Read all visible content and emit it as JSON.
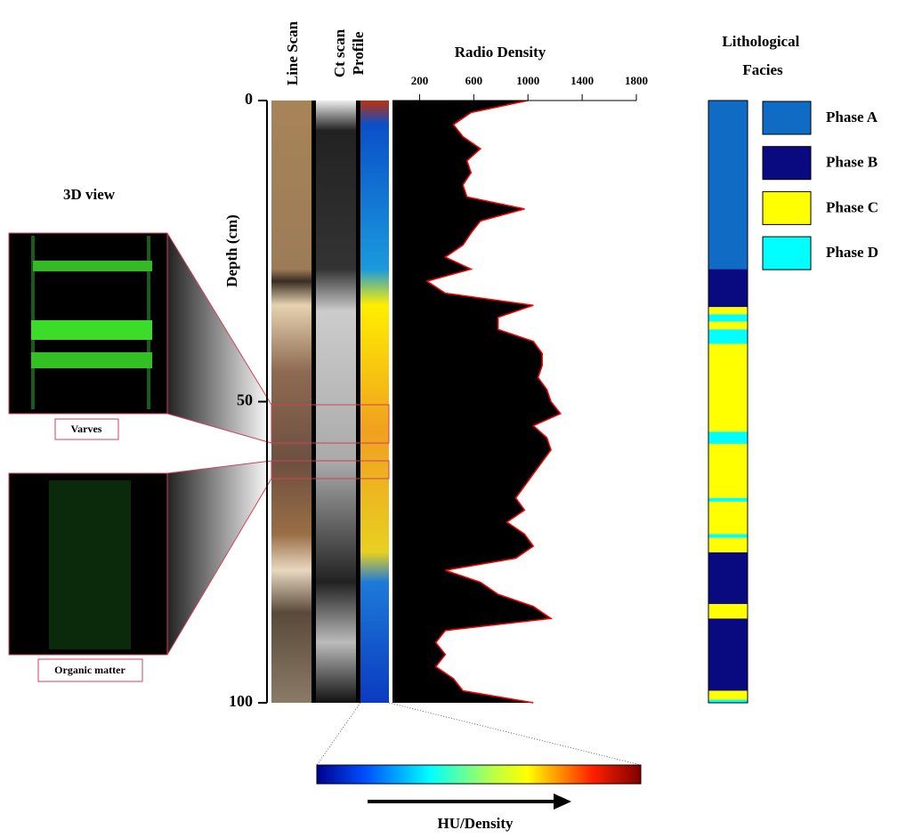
{
  "chart_data": [
    {
      "type": "area",
      "title": "Radio Density",
      "y_label": "Depth (cm)",
      "color": "#000000",
      "line_color": "#ff0000",
      "xlim": [
        0,
        1800
      ],
      "xticks": [
        200,
        600,
        1000,
        1400,
        1800
      ],
      "ylim": [
        0,
        100
      ],
      "yticks": [
        0,
        50,
        100
      ],
      "y_reversed": true,
      "depth": [
        0,
        2,
        4,
        6,
        8,
        10,
        12,
        14,
        16,
        18,
        20,
        22,
        24,
        26,
        28,
        30,
        32,
        34,
        36,
        38,
        40,
        42,
        44,
        46,
        48,
        50,
        52,
        54,
        56,
        58,
        60,
        62,
        64,
        66,
        68,
        70,
        72,
        74,
        76,
        78,
        80,
        82,
        84,
        86,
        88,
        90,
        92,
        94,
        96,
        98,
        100
      ],
      "values": [
        1000,
        580,
        450,
        520,
        650,
        550,
        580,
        520,
        550,
        975,
        650,
        580,
        520,
        390,
        580,
        255,
        390,
        1040,
        780,
        780,
        1040,
        1105,
        1105,
        1075,
        1140,
        1170,
        1240,
        1040,
        1140,
        1170,
        1105,
        1040,
        975,
        910,
        975,
        845,
        975,
        1040,
        910,
        390,
        650,
        780,
        1040,
        1170,
        390,
        320,
        390,
        320,
        450,
        520,
        1040
      ]
    },
    {
      "type": "facies",
      "title": "Lithological Facies",
      "ylim": [
        0,
        100
      ],
      "series": [
        {
          "name": "Phase A",
          "color": "#0f6bc4",
          "intervals": [
            [
              0,
              28
            ]
          ]
        },
        {
          "name": "Phase B",
          "color": "#0a0a80",
          "intervals": [
            [
              28,
              34.3
            ],
            [
              75,
              83.6
            ],
            [
              86,
              98
            ]
          ]
        },
        {
          "name": "Phase C",
          "color": "#ffff00",
          "intervals": [
            [
              34.3,
              35.5
            ],
            [
              36.7,
              38
            ],
            [
              40.4,
              55
            ],
            [
              57,
              66
            ],
            [
              66.6,
              72
            ],
            [
              72.6,
              75
            ],
            [
              83.6,
              86
            ],
            [
              98,
              99.5
            ]
          ]
        },
        {
          "name": "Phase D",
          "color": "#00ffff",
          "intervals": [
            [
              35.5,
              36.7
            ],
            [
              38,
              40.4
            ],
            [
              55,
              57
            ],
            [
              66,
              66.6
            ],
            [
              72,
              72.6
            ],
            [
              99.5,
              100
            ]
          ]
        }
      ]
    }
  ],
  "panels": {
    "line_scan": "Line Scan",
    "ct_label": [
      "Ct scan",
      "Profile"
    ],
    "view_title": "3D view",
    "insets": [
      "Varves",
      "Organic matter"
    ],
    "colorbar_label": "HU/Density"
  }
}
